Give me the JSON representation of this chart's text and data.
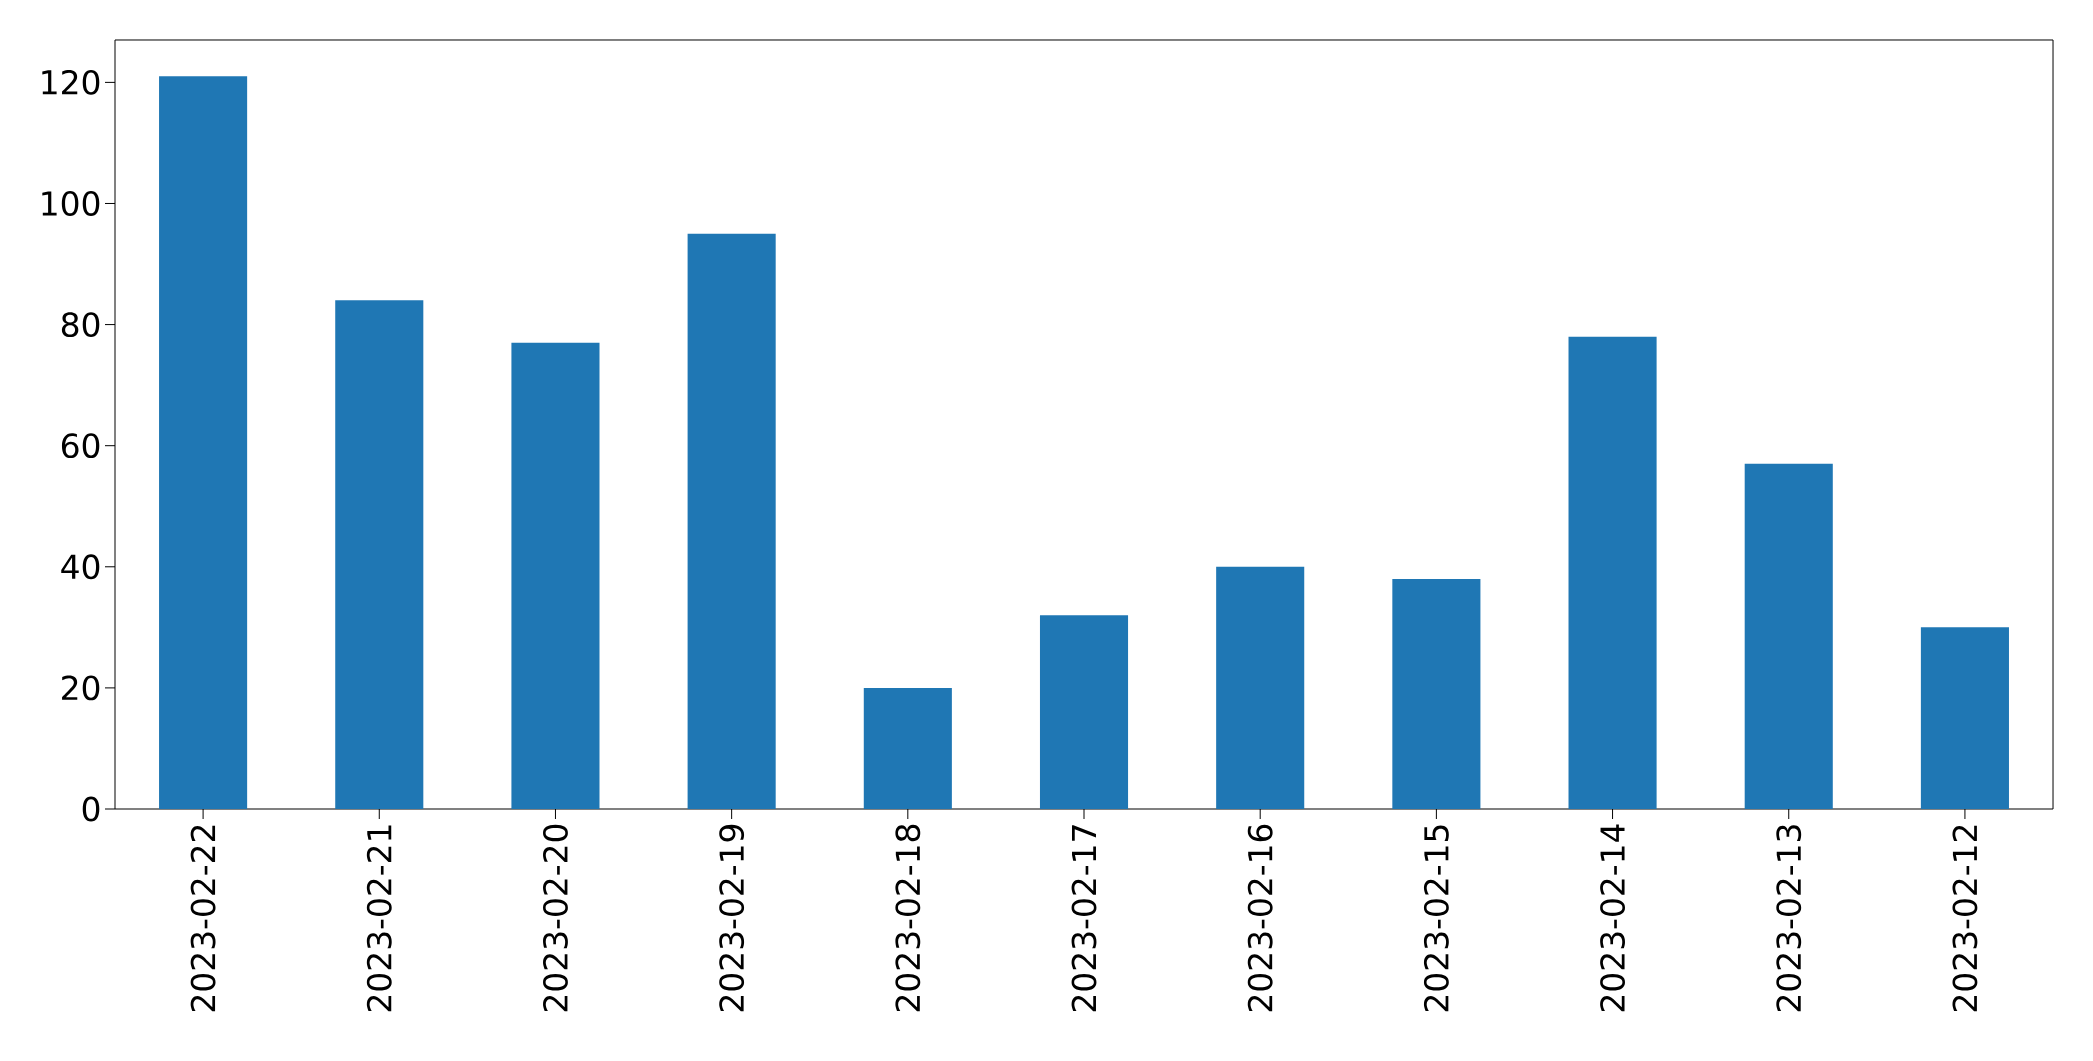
{
  "chart_data": {
    "type": "bar",
    "categories": [
      "2023-02-22",
      "2023-02-21",
      "2023-02-20",
      "2023-02-19",
      "2023-02-18",
      "2023-02-17",
      "2023-02-16",
      "2023-02-15",
      "2023-02-14",
      "2023-02-13",
      "2023-02-12"
    ],
    "values": [
      121,
      84,
      77,
      95,
      20,
      32,
      40,
      38,
      78,
      57,
      30
    ],
    "color": "#1f77b4",
    "ylim": [
      0,
      127
    ],
    "yticks": [
      0,
      20,
      40,
      60,
      80,
      100,
      120
    ]
  }
}
